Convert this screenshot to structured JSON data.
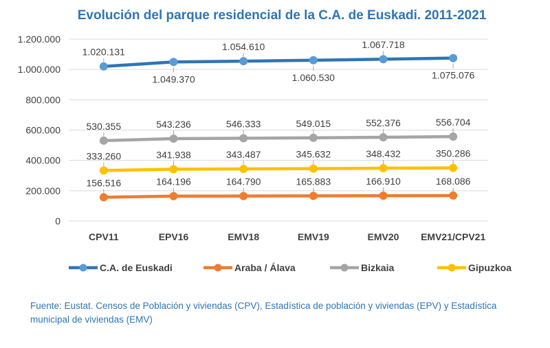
{
  "chart_data": {
    "type": "line",
    "title": "Evolución del parque residencial de la C.A. de Euskadi. 2011-2021",
    "categories": [
      "CPV11",
      "EPV16",
      "EMV18",
      "EMV19",
      "EMV20",
      "EMV21/CPV21"
    ],
    "ylim": [
      0,
      1200000
    ],
    "yticks": [
      0,
      200000,
      400000,
      600000,
      800000,
      1000000,
      1200000
    ],
    "ytick_labels": [
      "0",
      "200.000",
      "400.000",
      "600.000",
      "800.000",
      "1.000.000",
      "1.200.000"
    ],
    "grid": true,
    "legend_position": "bottom",
    "series": [
      {
        "name": "C.A. de Euskadi",
        "color": "#2e75b6",
        "marker": "#5b9bd5",
        "values": [
          1020131,
          1049370,
          1054610,
          1060530,
          1067718,
          1075076
        ],
        "labels": [
          "1.020.131",
          "1.049.370",
          "1.054.610",
          "1.060.530",
          "1.067.718",
          "1.075.076"
        ],
        "label_side": [
          "above",
          "below",
          "above",
          "below",
          "above",
          "below"
        ]
      },
      {
        "name": "Araba / Álava",
        "color": "#ed7d31",
        "marker": "#ed7d31",
        "values": [
          156516,
          164196,
          164790,
          165883,
          166910,
          168086
        ],
        "labels": [
          "156.516",
          "164.196",
          "164.790",
          "165.883",
          "166.910",
          "168.086"
        ],
        "label_side": [
          "above",
          "above",
          "above",
          "above",
          "above",
          "above"
        ]
      },
      {
        "name": "Bizkaia",
        "color": "#a5a5a5",
        "marker": "#a5a5a5",
        "values": [
          530355,
          543236,
          546333,
          549015,
          552376,
          556704
        ],
        "labels": [
          "530.355",
          "543.236",
          "546.333",
          "549.015",
          "552.376",
          "556.704"
        ],
        "label_side": [
          "above",
          "above",
          "above",
          "above",
          "above",
          "above"
        ]
      },
      {
        "name": "Gipuzkoa",
        "color": "#ffc000",
        "marker": "#ffc000",
        "values": [
          333260,
          341938,
          343487,
          345632,
          348432,
          350286
        ],
        "labels": [
          "333.260",
          "341.938",
          "343.487",
          "345.632",
          "348.432",
          "350.286"
        ],
        "label_side": [
          "above",
          "above",
          "above",
          "above",
          "above",
          "above"
        ]
      }
    ]
  },
  "source_note": "Fuente: Eustat. Censos de Población y viviendas (CPV), Estadística de población y viviendas (EPV) y Estadística municipal de viviendas (EMV)"
}
